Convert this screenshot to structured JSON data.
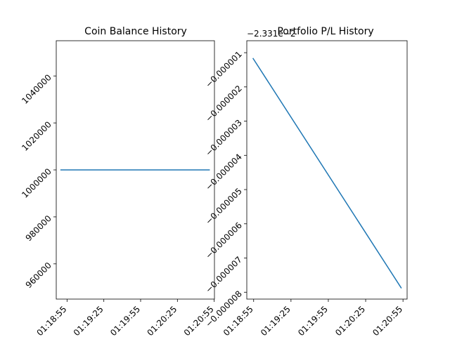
{
  "chart_data": [
    {
      "type": "line",
      "title": "Coin Balance History",
      "xlabel": "",
      "ylabel": "",
      "x_ticks": [
        "01:18:55",
        "01:19:25",
        "01:19:55",
        "01:20:25",
        "01:20:55"
      ],
      "y_ticks": [
        "960000",
        "980000",
        "1000000",
        "1020000",
        "1040000"
      ],
      "ylim": [
        945000,
        1055000
      ],
      "x_range_seconds": [
        -8.8,
        120.2
      ],
      "series": [
        {
          "x_seconds": [
            -5,
            116
          ],
          "values": [
            1000000,
            1000000
          ]
        }
      ],
      "grid": false,
      "color": "#1f77b4"
    },
    {
      "type": "line",
      "title": "Portfolio P/L History",
      "xlabel": "",
      "ylabel": "",
      "offset_text": "−2.331e−2",
      "x_ticks": [
        "01:18:55",
        "01:19:25",
        "01:19:55",
        "01:20:25",
        "01:20:55"
      ],
      "y_ticks": [
        "−0.000001",
        "−0.000002",
        "−0.000003",
        "−0.000004",
        "−0.000005",
        "−0.000006",
        "−0.000007",
        "−0.000008"
      ],
      "ylim": [
        -8.2e-06,
        -6.5e-07
      ],
      "x_range_seconds": [
        -5.5,
        123.3
      ],
      "series": [
        {
          "x_seconds": [
            -0.4,
            118.5
          ],
          "values": [
            -1.17e-06,
            -7.87e-06
          ]
        }
      ],
      "grid": false,
      "color": "#1f77b4"
    }
  ]
}
